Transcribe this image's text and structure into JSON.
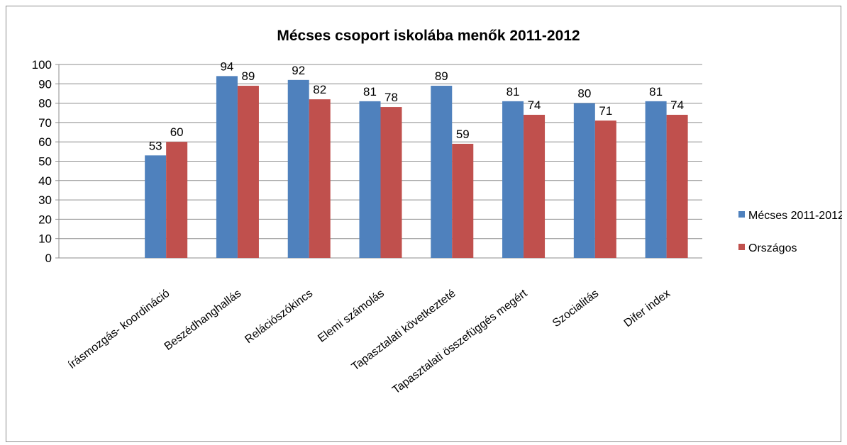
{
  "chart_data": {
    "type": "bar",
    "title": "Mécses csoport iskolába menők 2011-2012",
    "categories": [
      "Írásmozgás- koordináció",
      "Beszédhanghallás",
      "Relációszókincs",
      "Elemi számolás",
      "Tapasztalati következtetés",
      "Tapasztalati összefüggés megértése",
      "Szocialitás",
      "Difer index"
    ],
    "category_labels_visible": [
      "írásmozgás- koordináció",
      "Beszédhanghallás",
      "Relációszókincs",
      "Elemi számolás",
      "Tapasztalati következteté",
      "Tapasztalati összefüggés megért",
      "Szocialitás",
      "Difer index"
    ],
    "series": [
      {
        "name": "Mécses 2011-2012",
        "color": "#4f81bd",
        "values": [
          53,
          94,
          92,
          81,
          89,
          81,
          80,
          81
        ]
      },
      {
        "name": "Országos",
        "color": "#c0504d",
        "values": [
          60,
          89,
          82,
          78,
          59,
          74,
          71,
          74
        ]
      }
    ],
    "ylim": [
      0,
      100
    ],
    "yticks": [
      0,
      10,
      20,
      30,
      40,
      50,
      60,
      70,
      80,
      90,
      100
    ],
    "grid": true,
    "legend": "right",
    "data_labels": true
  }
}
